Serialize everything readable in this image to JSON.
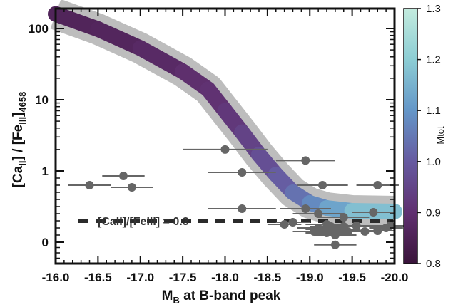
{
  "chart_data": {
    "type": "scatter",
    "xlabel": "M",
    "xlabel_sub": "B",
    "xlabel_rest": " at B-band peak",
    "ylabel_parts": [
      "[Ca",
      "II",
      "] / [Fe",
      "III",
      "]",
      "4658"
    ],
    "x_ticks": [
      -16.0,
      -16.5,
      -17.0,
      -17.5,
      -18.0,
      -18.5,
      -19.0,
      -19.5,
      -20.0
    ],
    "x_tick_labels": [
      "-16.0",
      "-16.5",
      "-17.0",
      "-17.5",
      "-18.0",
      "-18.5",
      "-19.0",
      "-19.5",
      "-20.0"
    ],
    "x_range": [
      -16.0,
      -20.0
    ],
    "y_scale": "symlog",
    "y_tick_values": [
      0,
      1,
      10,
      100
    ],
    "y_tick_labels": [
      "0",
      "1",
      "10",
      "100"
    ],
    "y_range": [
      -0.3,
      250
    ],
    "grid": false,
    "reference_line": {
      "y": 0.3,
      "style": "dashed",
      "label": "[CaII]/[FeIII] = 0.3"
    },
    "model_curve": {
      "colorbar_label": "Mtot",
      "colorbar_range": [
        0.8,
        1.3
      ],
      "colorbar_ticks": [
        "0.8",
        "0.9",
        "1.0",
        "1.1",
        "1.2",
        "1.3"
      ],
      "band_color": "#bdbdbd",
      "points": [
        {
          "x": -16.0,
          "y": 160,
          "mtot": 0.86
        },
        {
          "x": -16.5,
          "y": 98,
          "mtot": 0.86
        },
        {
          "x": -17.0,
          "y": 53,
          "mtot": 0.87
        },
        {
          "x": -17.5,
          "y": 25,
          "mtot": 0.89
        },
        {
          "x": -17.8,
          "y": 14,
          "mtot": 0.9
        },
        {
          "x": -18.0,
          "y": 7,
          "mtot": 0.91
        },
        {
          "x": -18.2,
          "y": 3.5,
          "mtot": 0.93
        },
        {
          "x": -18.4,
          "y": 1.7,
          "mtot": 0.96
        },
        {
          "x": -18.6,
          "y": 0.95,
          "mtot": 0.99
        },
        {
          "x": -18.8,
          "y": 0.7,
          "mtot": 1.02
        },
        {
          "x": -19.0,
          "y": 0.55,
          "mtot": 1.06
        },
        {
          "x": -19.2,
          "y": 0.48,
          "mtot": 1.1
        },
        {
          "x": -19.5,
          "y": 0.44,
          "mtot": 1.15
        },
        {
          "x": -20.0,
          "y": 0.43,
          "mtot": 1.2
        }
      ]
    },
    "points": [
      {
        "x": -16.4,
        "y": 0.8,
        "xerr": 0.25
      },
      {
        "x": -16.8,
        "y": 0.93,
        "xerr": 0.25
      },
      {
        "x": -16.9,
        "y": 0.77,
        "xerr": 0.25
      },
      {
        "x": -18.0,
        "y": 2.0,
        "xerr": 0.5
      },
      {
        "x": -18.2,
        "y": 0.98,
        "xerr": 0.4
      },
      {
        "x": -18.2,
        "y": 0.47,
        "xerr": 0.4
      },
      {
        "x": -18.7,
        "y": 0.25,
        "xerr": 0.2
      },
      {
        "x": -18.8,
        "y": 0.28,
        "xerr": 0.2
      },
      {
        "x": -18.95,
        "y": 1.4,
        "xerr": 0.35
      },
      {
        "x": -18.95,
        "y": 0.47,
        "xerr": 0.3
      },
      {
        "x": -19.05,
        "y": 0.15,
        "xerr": 0.25
      },
      {
        "x": -19.1,
        "y": 0.2,
        "xerr": 0.25
      },
      {
        "x": -19.1,
        "y": 0.4,
        "xerr": 0.3
      },
      {
        "x": -19.15,
        "y": 0.8,
        "xerr": 0.3
      },
      {
        "x": -19.2,
        "y": 0.13,
        "xerr": 0.25
      },
      {
        "x": -19.2,
        "y": 0.18,
        "xerr": 0.25
      },
      {
        "x": -19.2,
        "y": 0.25,
        "xerr": 0.25
      },
      {
        "x": -19.25,
        "y": 0.15,
        "xerr": 0.25
      },
      {
        "x": -19.25,
        "y": 0.22,
        "xerr": 0.25
      },
      {
        "x": -19.3,
        "y": 0.1,
        "xerr": 0.25
      },
      {
        "x": -19.3,
        "y": -0.05,
        "xerr": 0.25
      },
      {
        "x": -19.35,
        "y": 0.17,
        "xerr": 0.25
      },
      {
        "x": -19.4,
        "y": 0.22,
        "xerr": 0.25
      },
      {
        "x": -19.4,
        "y": 0.35,
        "xerr": 0.3
      },
      {
        "x": -19.45,
        "y": 0.15,
        "xerr": 0.2
      },
      {
        "x": -19.55,
        "y": 0.23,
        "xerr": 0.25
      },
      {
        "x": -19.65,
        "y": 0.15,
        "xerr": 0.2
      },
      {
        "x": -19.75,
        "y": 0.42,
        "xerr": 0.25
      },
      {
        "x": -19.8,
        "y": 0.16,
        "xerr": 0.2
      },
      {
        "x": -19.8,
        "y": 0.8,
        "xerr": 0.25
      },
      {
        "x": -19.9,
        "y": 0.2,
        "xerr": 0.2
      },
      {
        "x": -19.95,
        "y": 0.23,
        "xerr": 0.2
      }
    ]
  }
}
